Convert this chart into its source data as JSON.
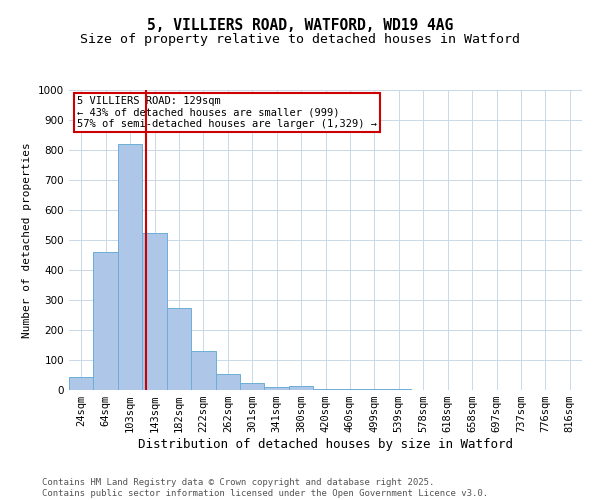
{
  "title": "5, VILLIERS ROAD, WATFORD, WD19 4AG",
  "subtitle": "Size of property relative to detached houses in Watford",
  "xlabel": "Distribution of detached houses by size in Watford",
  "ylabel": "Number of detached properties",
  "categories": [
    "24sqm",
    "64sqm",
    "103sqm",
    "143sqm",
    "182sqm",
    "222sqm",
    "262sqm",
    "301sqm",
    "341sqm",
    "380sqm",
    "420sqm",
    "460sqm",
    "499sqm",
    "539sqm",
    "578sqm",
    "618sqm",
    "658sqm",
    "697sqm",
    "737sqm",
    "776sqm",
    "816sqm"
  ],
  "values": [
    45,
    460,
    820,
    525,
    275,
    130,
    55,
    25,
    10,
    12,
    5,
    5,
    3,
    5,
    0,
    0,
    0,
    0,
    0,
    0,
    0
  ],
  "bar_color": "#aec6e8",
  "bar_edge_color": "#6baed6",
  "bar_edge_width": 0.7,
  "vline_color": "#cc0000",
  "ylim": [
    0,
    1000
  ],
  "yticks": [
    0,
    100,
    200,
    300,
    400,
    500,
    600,
    700,
    800,
    900,
    1000
  ],
  "annotation_text": "5 VILLIERS ROAD: 129sqm\n← 43% of detached houses are smaller (999)\n57% of semi-detached houses are larger (1,329) →",
  "annotation_box_color": "#ffffff",
  "annotation_box_edge_color": "#cc0000",
  "footer_line1": "Contains HM Land Registry data © Crown copyright and database right 2025.",
  "footer_line2": "Contains public sector information licensed under the Open Government Licence v3.0.",
  "background_color": "#ffffff",
  "grid_color": "#c8d8e8",
  "title_fontsize": 10.5,
  "subtitle_fontsize": 9.5,
  "xlabel_fontsize": 9,
  "ylabel_fontsize": 8,
  "tick_fontsize": 7.5,
  "annotation_fontsize": 7.5,
  "footer_fontsize": 6.5
}
